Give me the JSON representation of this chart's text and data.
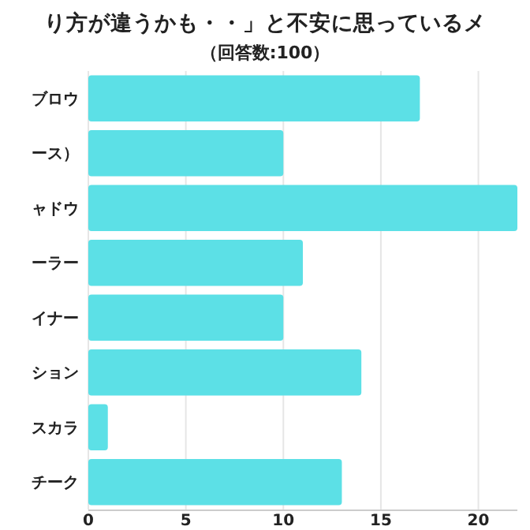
{
  "chart_data": {
    "type": "bar",
    "orientation": "horizontal",
    "title": "り方が違うかも・・」と不安に思っているメ",
    "subtitle": "（回答数:100）",
    "categories": [
      "ブロウ",
      "ース）",
      "ャドウ",
      "ーラー",
      "イナー",
      "ション",
      "スカラ",
      "チーク"
    ],
    "values": [
      17,
      10,
      22,
      11,
      10,
      14,
      1,
      13
    ],
    "color": "#5ce0e6",
    "xlim": [
      0,
      22
    ],
    "xticks": [
      0,
      5,
      10,
      15,
      20
    ],
    "grid": "x"
  }
}
